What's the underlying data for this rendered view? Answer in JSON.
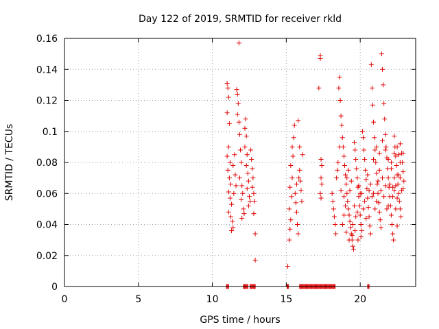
{
  "chart_data": {
    "type": "scatter",
    "title": "Day 122 of 2019, SRMTID for receiver rkld",
    "xlabel": "GPS time / hours",
    "ylabel": "SRMTID / TECUs",
    "xlim": [
      0,
      23.75
    ],
    "ylim": [
      0,
      0.16
    ],
    "xticks": [
      0,
      5,
      10,
      15,
      20
    ],
    "xtick_labels": [
      "0",
      "5",
      "10",
      "15",
      "20"
    ],
    "yticks": [
      0,
      0.02,
      0.04,
      0.06,
      0.08,
      0.1,
      0.12,
      0.14,
      0.16
    ],
    "ytick_labels": [
      "0",
      "0.02",
      "0.04",
      "0.06",
      "0.08",
      "0.1",
      "0.12",
      "0.14",
      "0.16"
    ],
    "grid": true,
    "marker": "+",
    "color": "#e00000",
    "zero_spans": [
      [
        10.95,
        11.1
      ],
      [
        12.1,
        12.4
      ],
      [
        12.55,
        12.9
      ],
      [
        15.05,
        15.15
      ],
      [
        15.9,
        18.3
      ],
      [
        20.5,
        20.6
      ]
    ],
    "series": [
      {
        "name": "rkld",
        "points": [
          [
            11.0,
            0.131
          ],
          [
            11.05,
            0.128
          ],
          [
            11.1,
            0.122
          ],
          [
            11.0,
            0.112
          ],
          [
            11.15,
            0.105
          ],
          [
            11.1,
            0.09
          ],
          [
            11.0,
            0.084
          ],
          [
            11.2,
            0.08
          ],
          [
            11.05,
            0.075
          ],
          [
            11.15,
            0.07
          ],
          [
            11.25,
            0.066
          ],
          [
            11.1,
            0.061
          ],
          [
            11.2,
            0.057
          ],
          [
            11.3,
            0.053
          ],
          [
            11.1,
            0.048
          ],
          [
            11.25,
            0.045
          ],
          [
            11.35,
            0.042
          ],
          [
            11.4,
            0.038
          ],
          [
            11.3,
            0.036
          ],
          [
            11.45,
            0.06
          ],
          [
            11.4,
            0.078
          ],
          [
            11.5,
            0.085
          ],
          [
            11.55,
            0.072
          ],
          [
            11.6,
            0.065
          ],
          [
            11.65,
            0.127
          ],
          [
            11.7,
            0.124
          ],
          [
            11.75,
            0.118
          ],
          [
            11.7,
            0.111
          ],
          [
            11.8,
            0.106
          ],
          [
            11.85,
            0.098
          ],
          [
            11.8,
            0.157
          ],
          [
            11.9,
            0.088
          ],
          [
            11.95,
            0.08
          ],
          [
            11.85,
            0.07
          ],
          [
            12.0,
            0.065
          ],
          [
            12.05,
            0.06
          ],
          [
            11.95,
            0.056
          ],
          [
            12.1,
            0.05
          ],
          [
            12.15,
            0.047
          ],
          [
            12.0,
            0.044
          ],
          [
            12.2,
            0.102
          ],
          [
            12.25,
            0.108
          ],
          [
            12.3,
            0.097
          ],
          [
            12.2,
            0.09
          ],
          [
            12.35,
            0.085
          ],
          [
            12.3,
            0.078
          ],
          [
            12.4,
            0.073
          ],
          [
            12.45,
            0.068
          ],
          [
            12.35,
            0.063
          ],
          [
            12.5,
            0.058
          ],
          [
            12.55,
            0.055
          ],
          [
            12.45,
            0.052
          ],
          [
            12.6,
            0.088
          ],
          [
            12.65,
            0.082
          ],
          [
            12.7,
            0.076
          ],
          [
            12.75,
            0.07
          ],
          [
            12.7,
            0.064
          ],
          [
            12.8,
            0.06
          ],
          [
            12.85,
            0.055
          ],
          [
            12.8,
            0.047
          ],
          [
            12.9,
            0.034
          ],
          [
            12.9,
            0.017
          ],
          [
            15.1,
            0.013
          ],
          [
            15.2,
            0.03
          ],
          [
            15.25,
            0.037
          ],
          [
            15.3,
            0.043
          ],
          [
            15.2,
            0.05
          ],
          [
            15.35,
            0.058
          ],
          [
            15.25,
            0.064
          ],
          [
            15.4,
            0.07
          ],
          [
            15.3,
            0.078
          ],
          [
            15.45,
            0.084
          ],
          [
            15.4,
            0.09
          ],
          [
            15.5,
            0.096
          ],
          [
            15.55,
            0.104
          ],
          [
            15.6,
            0.06
          ],
          [
            15.65,
            0.054
          ],
          [
            15.7,
            0.048
          ],
          [
            15.75,
            0.04
          ],
          [
            15.8,
            0.034
          ],
          [
            15.7,
            0.066
          ],
          [
            15.85,
            0.07
          ],
          [
            15.8,
            0.107
          ],
          [
            15.9,
            0.075
          ],
          [
            15.95,
            0.068
          ],
          [
            16.0,
            0.062
          ],
          [
            16.05,
            0.055
          ],
          [
            15.9,
            0.09
          ],
          [
            16.1,
            0.085
          ],
          [
            17.2,
            0.128
          ],
          [
            17.3,
            0.149
          ],
          [
            17.3,
            0.147
          ],
          [
            17.35,
            0.082
          ],
          [
            17.4,
            0.078
          ],
          [
            17.35,
            0.07
          ],
          [
            17.4,
            0.066
          ],
          [
            17.3,
            0.06
          ],
          [
            17.35,
            0.057
          ],
          [
            18.1,
            0.06
          ],
          [
            18.15,
            0.055
          ],
          [
            18.2,
            0.05
          ],
          [
            18.25,
            0.045
          ],
          [
            18.3,
            0.04
          ],
          [
            18.35,
            0.034
          ],
          [
            18.4,
            0.07
          ],
          [
            18.45,
            0.075
          ],
          [
            18.5,
            0.08
          ],
          [
            18.55,
            0.128
          ],
          [
            18.6,
            0.135
          ],
          [
            18.65,
            0.12
          ],
          [
            18.7,
            0.11
          ],
          [
            18.75,
            0.104
          ],
          [
            18.8,
            0.096
          ],
          [
            18.85,
            0.09
          ],
          [
            18.9,
            0.084
          ],
          [
            18.95,
            0.078
          ],
          [
            19.0,
            0.072
          ],
          [
            19.05,
            0.066
          ],
          [
            19.1,
            0.06
          ],
          [
            19.15,
            0.055
          ],
          [
            19.2,
            0.05
          ],
          [
            19.25,
            0.046
          ],
          [
            19.3,
            0.042
          ],
          [
            19.35,
            0.038
          ],
          [
            19.4,
            0.034
          ],
          [
            19.45,
            0.03
          ],
          [
            19.5,
            0.026
          ],
          [
            19.55,
            0.024
          ],
          [
            19.6,
            0.093
          ],
          [
            19.65,
            0.088
          ],
          [
            19.7,
            0.082
          ],
          [
            19.75,
            0.076
          ],
          [
            19.8,
            0.07
          ],
          [
            19.85,
            0.064
          ],
          [
            19.9,
            0.058
          ],
          [
            19.95,
            0.052
          ],
          [
            20.0,
            0.046
          ],
          [
            20.05,
            0.04
          ],
          [
            20.1,
            0.036
          ],
          [
            20.15,
            0.1
          ],
          [
            20.2,
            0.096
          ],
          [
            20.25,
            0.088
          ],
          [
            20.3,
            0.082
          ],
          [
            20.35,
            0.075
          ],
          [
            20.4,
            0.069
          ],
          [
            20.45,
            0.063
          ],
          [
            20.5,
            0.057
          ],
          [
            20.55,
            0.051
          ],
          [
            20.6,
            0.045
          ],
          [
            20.65,
            0.039
          ],
          [
            20.7,
            0.034
          ],
          [
            20.75,
            0.143
          ],
          [
            20.8,
            0.128
          ],
          [
            20.85,
            0.117
          ],
          [
            20.9,
            0.106
          ],
          [
            20.95,
            0.096
          ],
          [
            21.0,
            0.088
          ],
          [
            21.05,
            0.08
          ],
          [
            21.1,
            0.073
          ],
          [
            21.15,
            0.066
          ],
          [
            21.2,
            0.06
          ],
          [
            21.25,
            0.054
          ],
          [
            21.3,
            0.048
          ],
          [
            21.35,
            0.043
          ],
          [
            21.4,
            0.038
          ],
          [
            21.45,
            0.15
          ],
          [
            21.5,
            0.14
          ],
          [
            21.55,
            0.13
          ],
          [
            21.6,
            0.118
          ],
          [
            21.65,
            0.108
          ],
          [
            21.7,
            0.098
          ],
          [
            21.75,
            0.09
          ],
          [
            21.8,
            0.083
          ],
          [
            21.85,
            0.076
          ],
          [
            21.9,
            0.07
          ],
          [
            21.95,
            0.064
          ],
          [
            22.0,
            0.058
          ],
          [
            22.05,
            0.052
          ],
          [
            22.1,
            0.046
          ],
          [
            22.15,
            0.04
          ],
          [
            22.2,
            0.034
          ],
          [
            22.25,
            0.03
          ],
          [
            22.3,
            0.097
          ],
          [
            22.35,
            0.09
          ],
          [
            22.4,
            0.084
          ],
          [
            22.45,
            0.078
          ],
          [
            22.5,
            0.072
          ],
          [
            22.55,
            0.066
          ],
          [
            22.6,
            0.06
          ],
          [
            22.65,
            0.055
          ],
          [
            22.7,
            0.05
          ],
          [
            22.75,
            0.045
          ],
          [
            22.8,
            0.086
          ],
          [
            22.85,
            0.08
          ],
          [
            22.9,
            0.074
          ],
          [
            22.95,
            0.068
          ],
          [
            22.7,
            0.092
          ],
          [
            22.6,
            0.085
          ],
          [
            22.5,
            0.039
          ],
          [
            22.4,
            0.065
          ],
          [
            22.3,
            0.07
          ],
          [
            22.2,
            0.058
          ],
          [
            18.6,
            0.09
          ],
          [
            18.7,
            0.062
          ],
          [
            18.9,
            0.058
          ],
          [
            19.1,
            0.07
          ],
          [
            19.3,
            0.062
          ],
          [
            19.5,
            0.04
          ],
          [
            19.7,
            0.045
          ],
          [
            19.9,
            0.065
          ],
          [
            20.1,
            0.06
          ],
          [
            20.3,
            0.055
          ],
          [
            20.5,
            0.072
          ],
          [
            20.7,
            0.066
          ],
          [
            20.9,
            0.06
          ],
          [
            21.1,
            0.055
          ],
          [
            21.3,
            0.075
          ],
          [
            21.5,
            0.07
          ],
          [
            21.7,
            0.065
          ],
          [
            21.9,
            0.052
          ],
          [
            22.1,
            0.08
          ],
          [
            22.3,
            0.062
          ],
          [
            22.5,
            0.057
          ],
          [
            22.7,
            0.07
          ],
          [
            22.9,
            0.063
          ],
          [
            19.2,
            0.075
          ],
          [
            19.4,
            0.068
          ],
          [
            19.6,
            0.052
          ],
          [
            19.8,
            0.048
          ],
          [
            20.0,
            0.06
          ],
          [
            20.2,
            0.05
          ],
          [
            20.4,
            0.044
          ],
          [
            20.6,
            0.062
          ],
          [
            20.8,
            0.058
          ],
          [
            21.0,
            0.05
          ],
          [
            21.2,
            0.068
          ],
          [
            21.4,
            0.062
          ],
          [
            21.6,
            0.058
          ],
          [
            21.8,
            0.05
          ],
          [
            22.0,
            0.066
          ],
          [
            22.2,
            0.064
          ],
          [
            22.4,
            0.05
          ],
          [
            22.6,
            0.072
          ],
          [
            22.8,
            0.062
          ],
          [
            19.05,
            0.035
          ],
          [
            19.25,
            0.03
          ],
          [
            19.45,
            0.033
          ],
          [
            19.65,
            0.036
          ],
          [
            19.85,
            0.03
          ],
          [
            20.05,
            0.032
          ],
          [
            18.8,
            0.04
          ],
          [
            18.9,
            0.046
          ],
          [
            19.0,
            0.052
          ],
          [
            20.9,
            0.082
          ],
          [
            21.1,
            0.09
          ],
          [
            21.3,
            0.086
          ],
          [
            21.5,
            0.094
          ],
          [
            21.7,
            0.088
          ],
          [
            21.9,
            0.082
          ],
          [
            22.1,
            0.076
          ],
          [
            22.3,
            0.086
          ],
          [
            22.5,
            0.09
          ],
          [
            22.7,
            0.08
          ],
          [
            22.9,
            0.086
          ]
        ]
      }
    ]
  }
}
